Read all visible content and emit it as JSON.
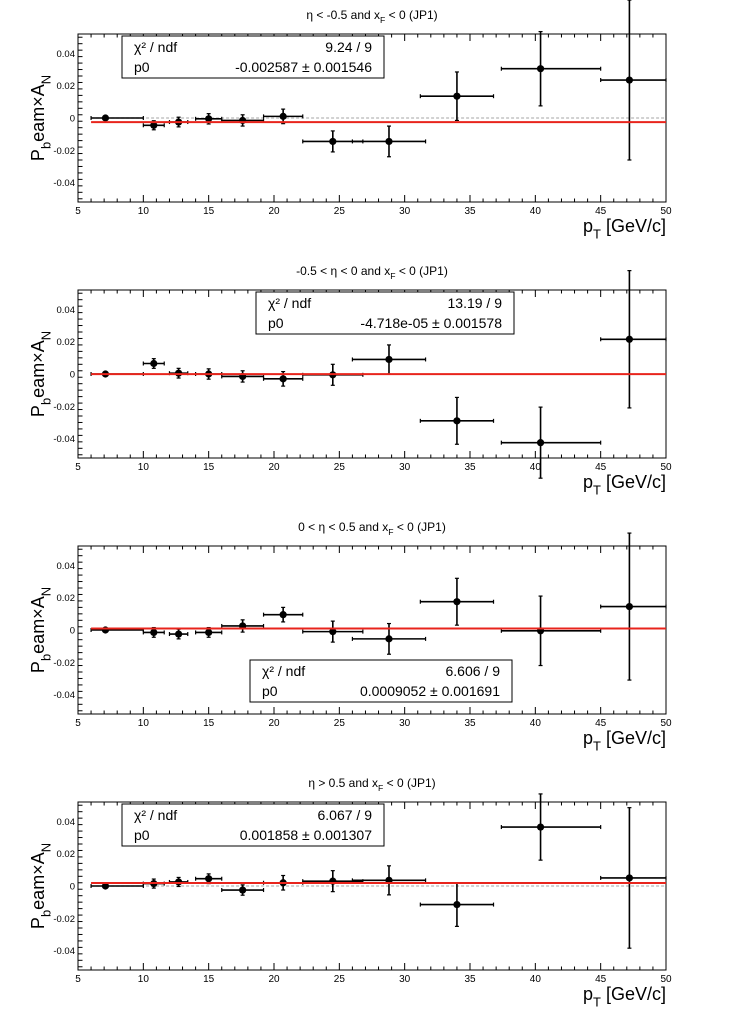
{
  "chart_data": [
    {
      "type": "scatter",
      "title": "η < -0.5 and x_F < 0 (JP1)",
      "xlabel": "p_T [GeV/c]",
      "ylabel": "P_beam×A_N",
      "xlim": [
        5,
        50
      ],
      "ylim": [
        -0.052,
        0.052
      ],
      "x_ticks": [
        5,
        10,
        15,
        20,
        25,
        30,
        35,
        40,
        45,
        50
      ],
      "y_ticks": [
        -0.04,
        -0.02,
        0,
        0.02,
        0.04
      ],
      "y_tick_labels": [
        "-0.04",
        "-0.02",
        "0",
        "0.02",
        "0.04"
      ],
      "points": [
        {
          "x": 7.1,
          "xerr_lo": 1.1,
          "xerr_hi": 2.9,
          "y": 0.0,
          "yerr": 0.0
        },
        {
          "x": 10.8,
          "xerr_lo": 0.8,
          "xerr_hi": 0.8,
          "y": -0.0045,
          "yerr": 0.0028
        },
        {
          "x": 12.7,
          "xerr_lo": 0.7,
          "xerr_hi": 0.7,
          "y": -0.0025,
          "yerr": 0.003
        },
        {
          "x": 15.0,
          "xerr_lo": 1.0,
          "xerr_hi": 1.0,
          "y": -0.0005,
          "yerr": 0.0032
        },
        {
          "x": 17.6,
          "xerr_lo": 1.6,
          "xerr_hi": 1.6,
          "y": -0.0015,
          "yerr": 0.0035
        },
        {
          "x": 20.7,
          "xerr_lo": 1.5,
          "xerr_hi": 1.5,
          "y": 0.001,
          "yerr": 0.0045
        },
        {
          "x": 24.5,
          "xerr_lo": 2.3,
          "xerr_hi": 2.3,
          "y": -0.0145,
          "yerr": 0.0065
        },
        {
          "x": 28.8,
          "xerr_lo": 2.8,
          "xerr_hi": 2.8,
          "y": -0.0145,
          "yerr": 0.0095
        },
        {
          "x": 34.0,
          "xerr_lo": 2.8,
          "xerr_hi": 2.8,
          "y": 0.0135,
          "yerr": 0.015
        },
        {
          "x": 40.4,
          "xerr_lo": 3.0,
          "xerr_hi": 4.6,
          "y": 0.0305,
          "yerr": 0.023
        },
        {
          "x": 47.2,
          "xerr_lo": 2.2,
          "xerr_hi": 2.8,
          "y": 0.0235,
          "yerr": 0.0495
        }
      ],
      "fit": {
        "value": -0.002587
      },
      "dashed_reference": true,
      "stats": {
        "chi_label": "χ² / ndf",
        "chi_value": "9.24 / 9",
        "p0_label": "p0",
        "p0_value": "-0.002587 ± 0.001546",
        "placement": "top-left"
      }
    },
    {
      "type": "scatter",
      "title": "-0.5 < η < 0 and x_F < 0 (JP1)",
      "xlabel": "p_T [GeV/c]",
      "ylabel": "P_beam×A_N",
      "xlim": [
        5,
        50
      ],
      "ylim": [
        -0.052,
        0.052
      ],
      "x_ticks": [
        5,
        10,
        15,
        20,
        25,
        30,
        35,
        40,
        45,
        50
      ],
      "y_ticks": [
        -0.04,
        -0.02,
        0,
        0.02,
        0.04
      ],
      "y_tick_labels": [
        "-0.04",
        "-0.02",
        "0",
        "0.02",
        "0.04"
      ],
      "points": [
        {
          "x": 7.1,
          "xerr_lo": 1.1,
          "xerr_hi": 2.9,
          "y": 0.0,
          "yerr": 0.0
        },
        {
          "x": 10.8,
          "xerr_lo": 0.8,
          "xerr_hi": 0.8,
          "y": 0.0065,
          "yerr": 0.003
        },
        {
          "x": 12.7,
          "xerr_lo": 0.7,
          "xerr_hi": 0.7,
          "y": 0.0005,
          "yerr": 0.003
        },
        {
          "x": 15.0,
          "xerr_lo": 1.0,
          "xerr_hi": 1.0,
          "y": 0.0,
          "yerr": 0.0032
        },
        {
          "x": 17.6,
          "xerr_lo": 1.6,
          "xerr_hi": 1.6,
          "y": -0.0015,
          "yerr": 0.0035
        },
        {
          "x": 20.7,
          "xerr_lo": 1.5,
          "xerr_hi": 1.5,
          "y": -0.003,
          "yerr": 0.0045
        },
        {
          "x": 24.5,
          "xerr_lo": 2.3,
          "xerr_hi": 2.3,
          "y": -0.0005,
          "yerr": 0.0065
        },
        {
          "x": 28.8,
          "xerr_lo": 2.8,
          "xerr_hi": 2.8,
          "y": 0.009,
          "yerr": 0.009
        },
        {
          "x": 34.0,
          "xerr_lo": 2.8,
          "xerr_hi": 2.8,
          "y": -0.029,
          "yerr": 0.0145
        },
        {
          "x": 40.4,
          "xerr_lo": 3.0,
          "xerr_hi": 4.6,
          "y": -0.0425,
          "yerr": 0.022
        },
        {
          "x": 47.2,
          "xerr_lo": 2.2,
          "xerr_hi": 2.8,
          "y": 0.0215,
          "yerr": 0.0425
        }
      ],
      "fit": {
        "value": -4.718e-05
      },
      "dashed_reference": false,
      "stats": {
        "chi_label": "χ² / ndf",
        "chi_value": "13.19 / 9",
        "p0_label": "p0",
        "p0_value": "-4.718e-05 ± 0.001578",
        "placement": "top-center"
      }
    },
    {
      "type": "scatter",
      "title": "0 < η < 0.5 and x_F < 0 (JP1)",
      "xlabel": "p_T [GeV/c]",
      "ylabel": "P_beam×A_N",
      "xlim": [
        5,
        50
      ],
      "ylim": [
        -0.052,
        0.052
      ],
      "x_ticks": [
        5,
        10,
        15,
        20,
        25,
        30,
        35,
        40,
        45,
        50
      ],
      "y_ticks": [
        -0.04,
        -0.02,
        0,
        0.02,
        0.04
      ],
      "y_tick_labels": [
        "-0.04",
        "-0.02",
        "0",
        "0.02",
        "0.04"
      ],
      "points": [
        {
          "x": 7.1,
          "xerr_lo": 1.1,
          "xerr_hi": 2.9,
          "y": 0.0,
          "yerr": 0.0
        },
        {
          "x": 10.8,
          "xerr_lo": 0.8,
          "xerr_hi": 0.8,
          "y": -0.0015,
          "yerr": 0.003
        },
        {
          "x": 12.7,
          "xerr_lo": 0.7,
          "xerr_hi": 0.7,
          "y": -0.0025,
          "yerr": 0.003
        },
        {
          "x": 15.0,
          "xerr_lo": 1.0,
          "xerr_hi": 1.0,
          "y": -0.0015,
          "yerr": 0.003
        },
        {
          "x": 17.6,
          "xerr_lo": 1.6,
          "xerr_hi": 1.6,
          "y": 0.0025,
          "yerr": 0.0038
        },
        {
          "x": 20.7,
          "xerr_lo": 1.5,
          "xerr_hi": 1.5,
          "y": 0.0095,
          "yerr": 0.0045
        },
        {
          "x": 24.5,
          "xerr_lo": 2.3,
          "xerr_hi": 2.3,
          "y": -0.001,
          "yerr": 0.0065
        },
        {
          "x": 28.8,
          "xerr_lo": 2.8,
          "xerr_hi": 2.8,
          "y": -0.0055,
          "yerr": 0.0095
        },
        {
          "x": 34.0,
          "xerr_lo": 2.8,
          "xerr_hi": 2.8,
          "y": 0.0175,
          "yerr": 0.0145
        },
        {
          "x": 40.4,
          "xerr_lo": 3.0,
          "xerr_hi": 4.6,
          "y": -0.0005,
          "yerr": 0.0215
        },
        {
          "x": 47.2,
          "xerr_lo": 2.2,
          "xerr_hi": 2.8,
          "y": 0.0145,
          "yerr": 0.0455
        }
      ],
      "fit": {
        "value": 0.0009052
      },
      "dashed_reference": false,
      "stats": {
        "chi_label": "χ² / ndf",
        "chi_value": "6.606 / 9",
        "p0_label": "p0",
        "p0_value": "0.0009052 ± 0.001691",
        "placement": "bottom-center"
      }
    },
    {
      "type": "scatter",
      "title": "η > 0.5 and x_F < 0 (JP1)",
      "xlabel": "p_T [GeV/c]",
      "ylabel": "P_beam×A_N",
      "xlim": [
        5,
        50
      ],
      "ylim": [
        -0.052,
        0.052
      ],
      "x_ticks": [
        5,
        10,
        15,
        20,
        25,
        30,
        35,
        40,
        45,
        50
      ],
      "y_ticks": [
        -0.04,
        -0.02,
        0,
        0.02,
        0.04
      ],
      "y_tick_labels": [
        "-0.04",
        "-0.02",
        "0",
        "0.02",
        "0.04"
      ],
      "points": [
        {
          "x": 7.1,
          "xerr_lo": 1.1,
          "xerr_hi": 2.9,
          "y": 0.0,
          "yerr": 0.0
        },
        {
          "x": 10.8,
          "xerr_lo": 0.8,
          "xerr_hi": 0.8,
          "y": 0.0015,
          "yerr": 0.0028
        },
        {
          "x": 12.7,
          "xerr_lo": 0.7,
          "xerr_hi": 0.7,
          "y": 0.0025,
          "yerr": 0.0028
        },
        {
          "x": 15.0,
          "xerr_lo": 1.0,
          "xerr_hi": 1.0,
          "y": 0.0045,
          "yerr": 0.003
        },
        {
          "x": 17.6,
          "xerr_lo": 1.6,
          "xerr_hi": 1.6,
          "y": -0.0025,
          "yerr": 0.0032
        },
        {
          "x": 20.7,
          "xerr_lo": 1.5,
          "xerr_hi": 1.5,
          "y": 0.002,
          "yerr": 0.0045
        },
        {
          "x": 24.5,
          "xerr_lo": 2.3,
          "xerr_hi": 2.3,
          "y": 0.003,
          "yerr": 0.0065
        },
        {
          "x": 28.8,
          "xerr_lo": 2.8,
          "xerr_hi": 2.8,
          "y": 0.0035,
          "yerr": 0.009
        },
        {
          "x": 34.0,
          "xerr_lo": 2.8,
          "xerr_hi": 2.8,
          "y": -0.0115,
          "yerr": 0.0135
        },
        {
          "x": 40.4,
          "xerr_lo": 3.0,
          "xerr_hi": 4.6,
          "y": 0.0365,
          "yerr": 0.0205
        },
        {
          "x": 47.2,
          "xerr_lo": 2.2,
          "xerr_hi": 2.8,
          "y": 0.005,
          "yerr": 0.0435
        }
      ],
      "fit": {
        "value": 0.001858
      },
      "dashed_reference": true,
      "stats": {
        "chi_label": "χ² / ndf",
        "chi_value": "6.067 / 9",
        "p0_label": "p0",
        "p0_value": "0.001858 ± 0.001307",
        "placement": "top-left"
      }
    }
  ],
  "colors": {
    "fit_line": "#e8241c",
    "markers": "#000000",
    "frame": "#000000",
    "reference_line": "#b8b8b8"
  }
}
